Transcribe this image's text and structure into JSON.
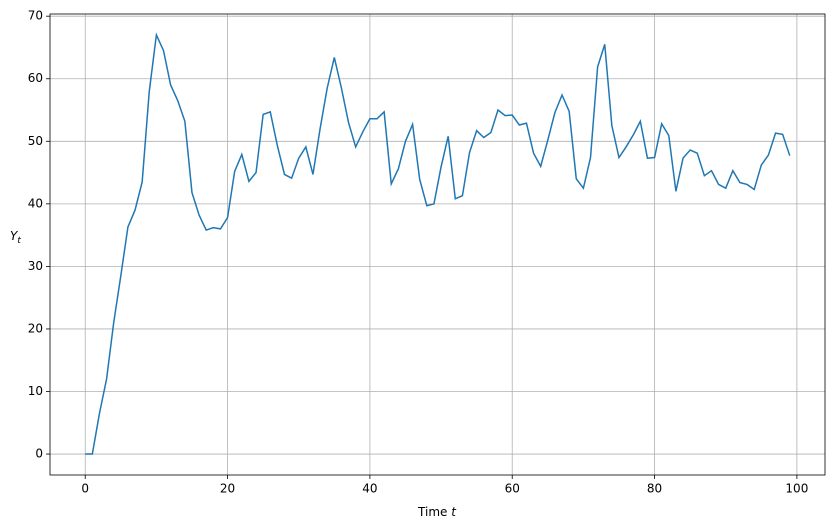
{
  "chart_data": {
    "type": "line",
    "x_label": {
      "text": "Time",
      "var": "t"
    },
    "y_label": {
      "main": "Y",
      "sub": "t"
    },
    "x": [
      0,
      1,
      2,
      3,
      4,
      5,
      6,
      7,
      8,
      9,
      10,
      11,
      12,
      13,
      14,
      15,
      16,
      17,
      18,
      19,
      20,
      21,
      22,
      23,
      24,
      25,
      26,
      27,
      28,
      29,
      30,
      31,
      32,
      33,
      34,
      35,
      36,
      37,
      38,
      39,
      40,
      41,
      42,
      43,
      44,
      45,
      46,
      47,
      48,
      49,
      50,
      51,
      52,
      53,
      54,
      55,
      56,
      57,
      58,
      59,
      60,
      61,
      62,
      63,
      64,
      65,
      66,
      67,
      68,
      69,
      70,
      71,
      72,
      73,
      74,
      75,
      76,
      77,
      78,
      79,
      80,
      81,
      82,
      83,
      84,
      85,
      86,
      87,
      88,
      89,
      90,
      91,
      92,
      93,
      94,
      95,
      96,
      97,
      98,
      99
    ],
    "series": [
      {
        "color": "#1f77b4",
        "values": [
          0,
          0,
          6.5,
          12,
          21,
          28.5,
          36.3,
          39,
          43.5,
          58,
          67,
          64.5,
          59,
          56.5,
          53.2,
          41.8,
          38.2,
          35.8,
          36.2,
          36,
          37.8,
          45.2,
          47.9,
          43.6,
          45,
          54.3,
          54.7,
          49.3,
          44.7,
          44.1,
          47.3,
          49.1,
          44.7,
          52,
          58.5,
          63.4,
          58.5,
          53,
          49.1,
          51.5,
          53.6,
          53.6,
          54.7,
          43.2,
          45.6,
          50,
          52.7,
          43.9,
          39.7,
          40,
          45.9,
          50.8,
          40.8,
          41.3,
          48.2,
          51.7,
          50.6,
          51.4,
          55,
          54.1,
          54.2,
          52.6,
          52.9,
          48.1,
          46,
          50.2,
          54.6,
          57.4,
          54.8,
          44,
          42.5,
          47.4,
          61.9,
          65.5,
          52.5,
          47.4,
          49.1,
          51,
          53.2,
          47.3,
          47.4,
          52.8,
          50.9,
          42,
          47.3,
          48.6,
          48.1,
          44.5,
          45.3,
          43.1,
          42.5,
          45.3,
          43.4,
          43.1,
          42.3,
          46.2,
          47.8,
          51.3,
          51.1,
          47.7
        ]
      }
    ],
    "xlim": [
      -4.95,
      103.95
    ],
    "ylim": [
      -3.35,
      70.35
    ],
    "xticks": [
      0,
      20,
      40,
      60,
      80,
      100
    ],
    "yticks": [
      0,
      10,
      20,
      30,
      40,
      50,
      60,
      70
    ],
    "grid": true
  }
}
